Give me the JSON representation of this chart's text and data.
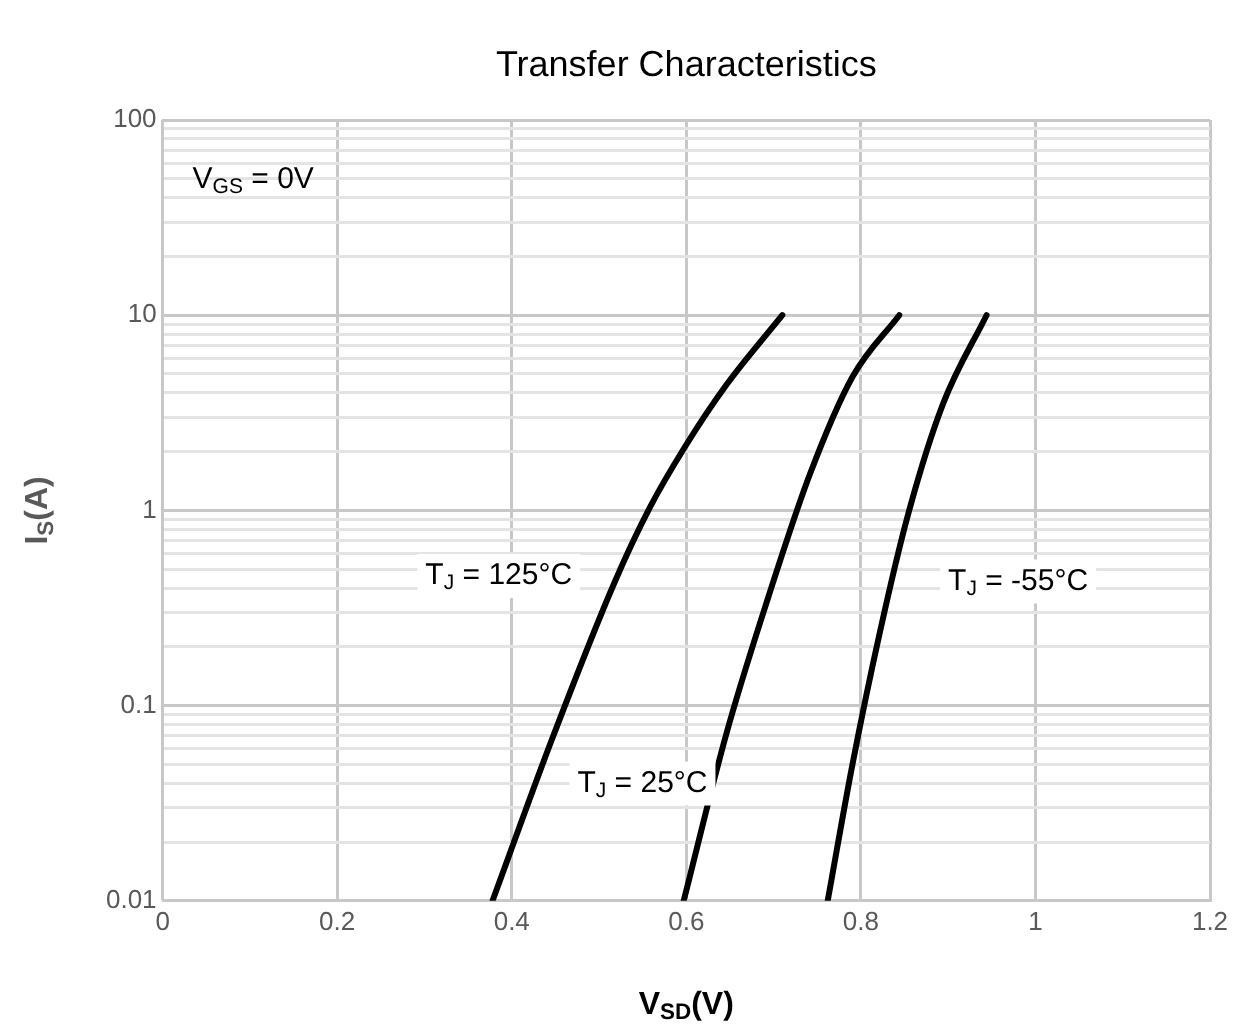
{
  "chart_data": {
    "type": "line",
    "title": "Transfer Characteristics",
    "xlabel": "V$_{SD}$(V)",
    "ylabel": "I$_{S}$(A)",
    "series": [
      {
        "name": "T$_{J}$ = 125°C",
        "color": "#000000",
        "x": [
          0.378,
          0.446,
          0.518,
          0.558,
          0.598,
          0.646,
          0.71
        ],
        "values": [
          0.01,
          0.067,
          0.43,
          1.03,
          2.1,
          4.4,
          10
        ]
      },
      {
        "name": "T$_{J}$ = 25°C",
        "color": "#000000",
        "x": [
          0.597,
          0.646,
          0.694,
          0.742,
          0.79,
          0.844
        ],
        "values": [
          0.01,
          0.072,
          0.36,
          1.55,
          4.8,
          10
        ]
      },
      {
        "name": "T$_{J}$ = -55°C",
        "color": "#000000",
        "x": [
          0.762,
          0.79,
          0.822,
          0.854,
          0.894,
          0.944
        ],
        "values": [
          0.01,
          0.049,
          0.24,
          0.95,
          3.5,
          10
        ]
      }
    ],
    "annotations": [
      "V$_{GS}$ = 0V"
    ],
    "xlim": [
      0,
      1.2
    ],
    "xticks": [
      0,
      0.2,
      0.4,
      0.6,
      0.8,
      1,
      1.2
    ],
    "ylim": [
      0.01,
      100
    ],
    "yticks": [
      0.01,
      {
        "value": 0.02,
        "label": null
      },
      {
        "value": 0.03,
        "label": null
      },
      {
        "value": 0.04,
        "label": null
      },
      {
        "value": 0.05,
        "label": null
      },
      {
        "value": 0.06,
        "label": null
      },
      {
        "value": 0.07,
        "label": null
      },
      {
        "value": 0.08,
        "label": null
      },
      {
        "value": 0.09,
        "label": null
      },
      0.1,
      {
        "value": 0.2,
        "label": null
      },
      {
        "value": 0.3,
        "label": null
      },
      {
        "value": 0.4,
        "label": null
      },
      {
        "value": 0.5,
        "label": null
      },
      {
        "value": 0.6,
        "label": null
      },
      {
        "value": 0.7,
        "label": null
      },
      {
        "value": 0.8,
        "label": null
      },
      {
        "value": 0.9,
        "label": null
      },
      1,
      {
        "value": 2,
        "label": null
      },
      {
        "value": 3,
        "label": null
      },
      {
        "value": 4,
        "label": null
      },
      {
        "value": 5,
        "label": null
      },
      {
        "value": 6,
        "label": null
      },
      {
        "value": 7,
        "label": null
      },
      {
        "value": 8,
        "label": null
      },
      {
        "value": 9,
        "label": null
      },
      10,
      {
        "value": 20,
        "label": null
      },
      {
        "value": 30,
        "label": null
      },
      {
        "value": 40,
        "label": null
      },
      {
        "value": 50,
        "label": null
      },
      {
        "value": 60,
        "label": null
      },
      {
        "value": 70,
        "label": null
      },
      {
        "value": 80,
        "label": null
      },
      {
        "value": 90,
        "label": null
      },
      100
    ],
    "log": true,
    "grid": true,
    "legend": false,
    "marker": "none",
    "line_style": "solid"
  }
}
